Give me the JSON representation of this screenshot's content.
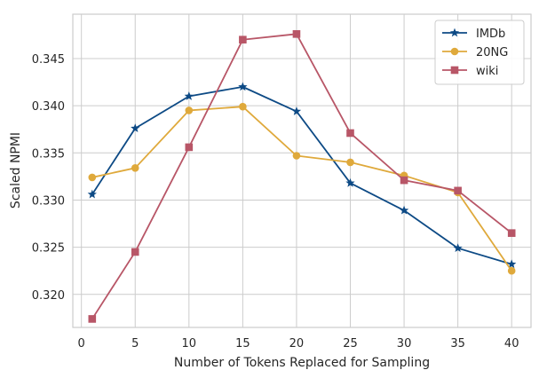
{
  "chart_data": {
    "type": "line",
    "xlabel": "Number of Tokens Replaced for Sampling",
    "ylabel": "Scaled NPMI",
    "x": [
      1,
      5,
      10,
      15,
      20,
      25,
      30,
      35,
      40
    ],
    "xlim": [
      -0.8,
      41.8
    ],
    "ylim": [
      0.3165,
      0.3497
    ],
    "xticks": [
      0,
      5,
      10,
      15,
      20,
      25,
      30,
      35,
      40
    ],
    "yticks": [
      0.32,
      0.325,
      0.33,
      0.335,
      0.34,
      0.345
    ],
    "ytick_labels": [
      "0.320",
      "0.325",
      "0.330",
      "0.335",
      "0.340",
      "0.345"
    ],
    "grid": true,
    "legend_position": "top-right",
    "series": [
      {
        "name": "IMDb",
        "color": "#0d4a85",
        "marker": "star",
        "values": [
          0.3306,
          0.3376,
          0.341,
          0.342,
          0.3394,
          0.3318,
          0.3289,
          0.3249,
          0.3232
        ]
      },
      {
        "name": "20NG",
        "color": "#dfa93b",
        "marker": "circle",
        "values": [
          0.3324,
          0.3334,
          0.3395,
          0.3399,
          0.3347,
          0.334,
          0.3326,
          0.3308,
          0.3225
        ]
      },
      {
        "name": "wiki",
        "color": "#b85667",
        "marker": "square",
        "values": [
          0.3174,
          0.3245,
          0.3356,
          0.347,
          0.3476,
          0.3371,
          0.3321,
          0.331,
          0.3265
        ]
      }
    ]
  }
}
